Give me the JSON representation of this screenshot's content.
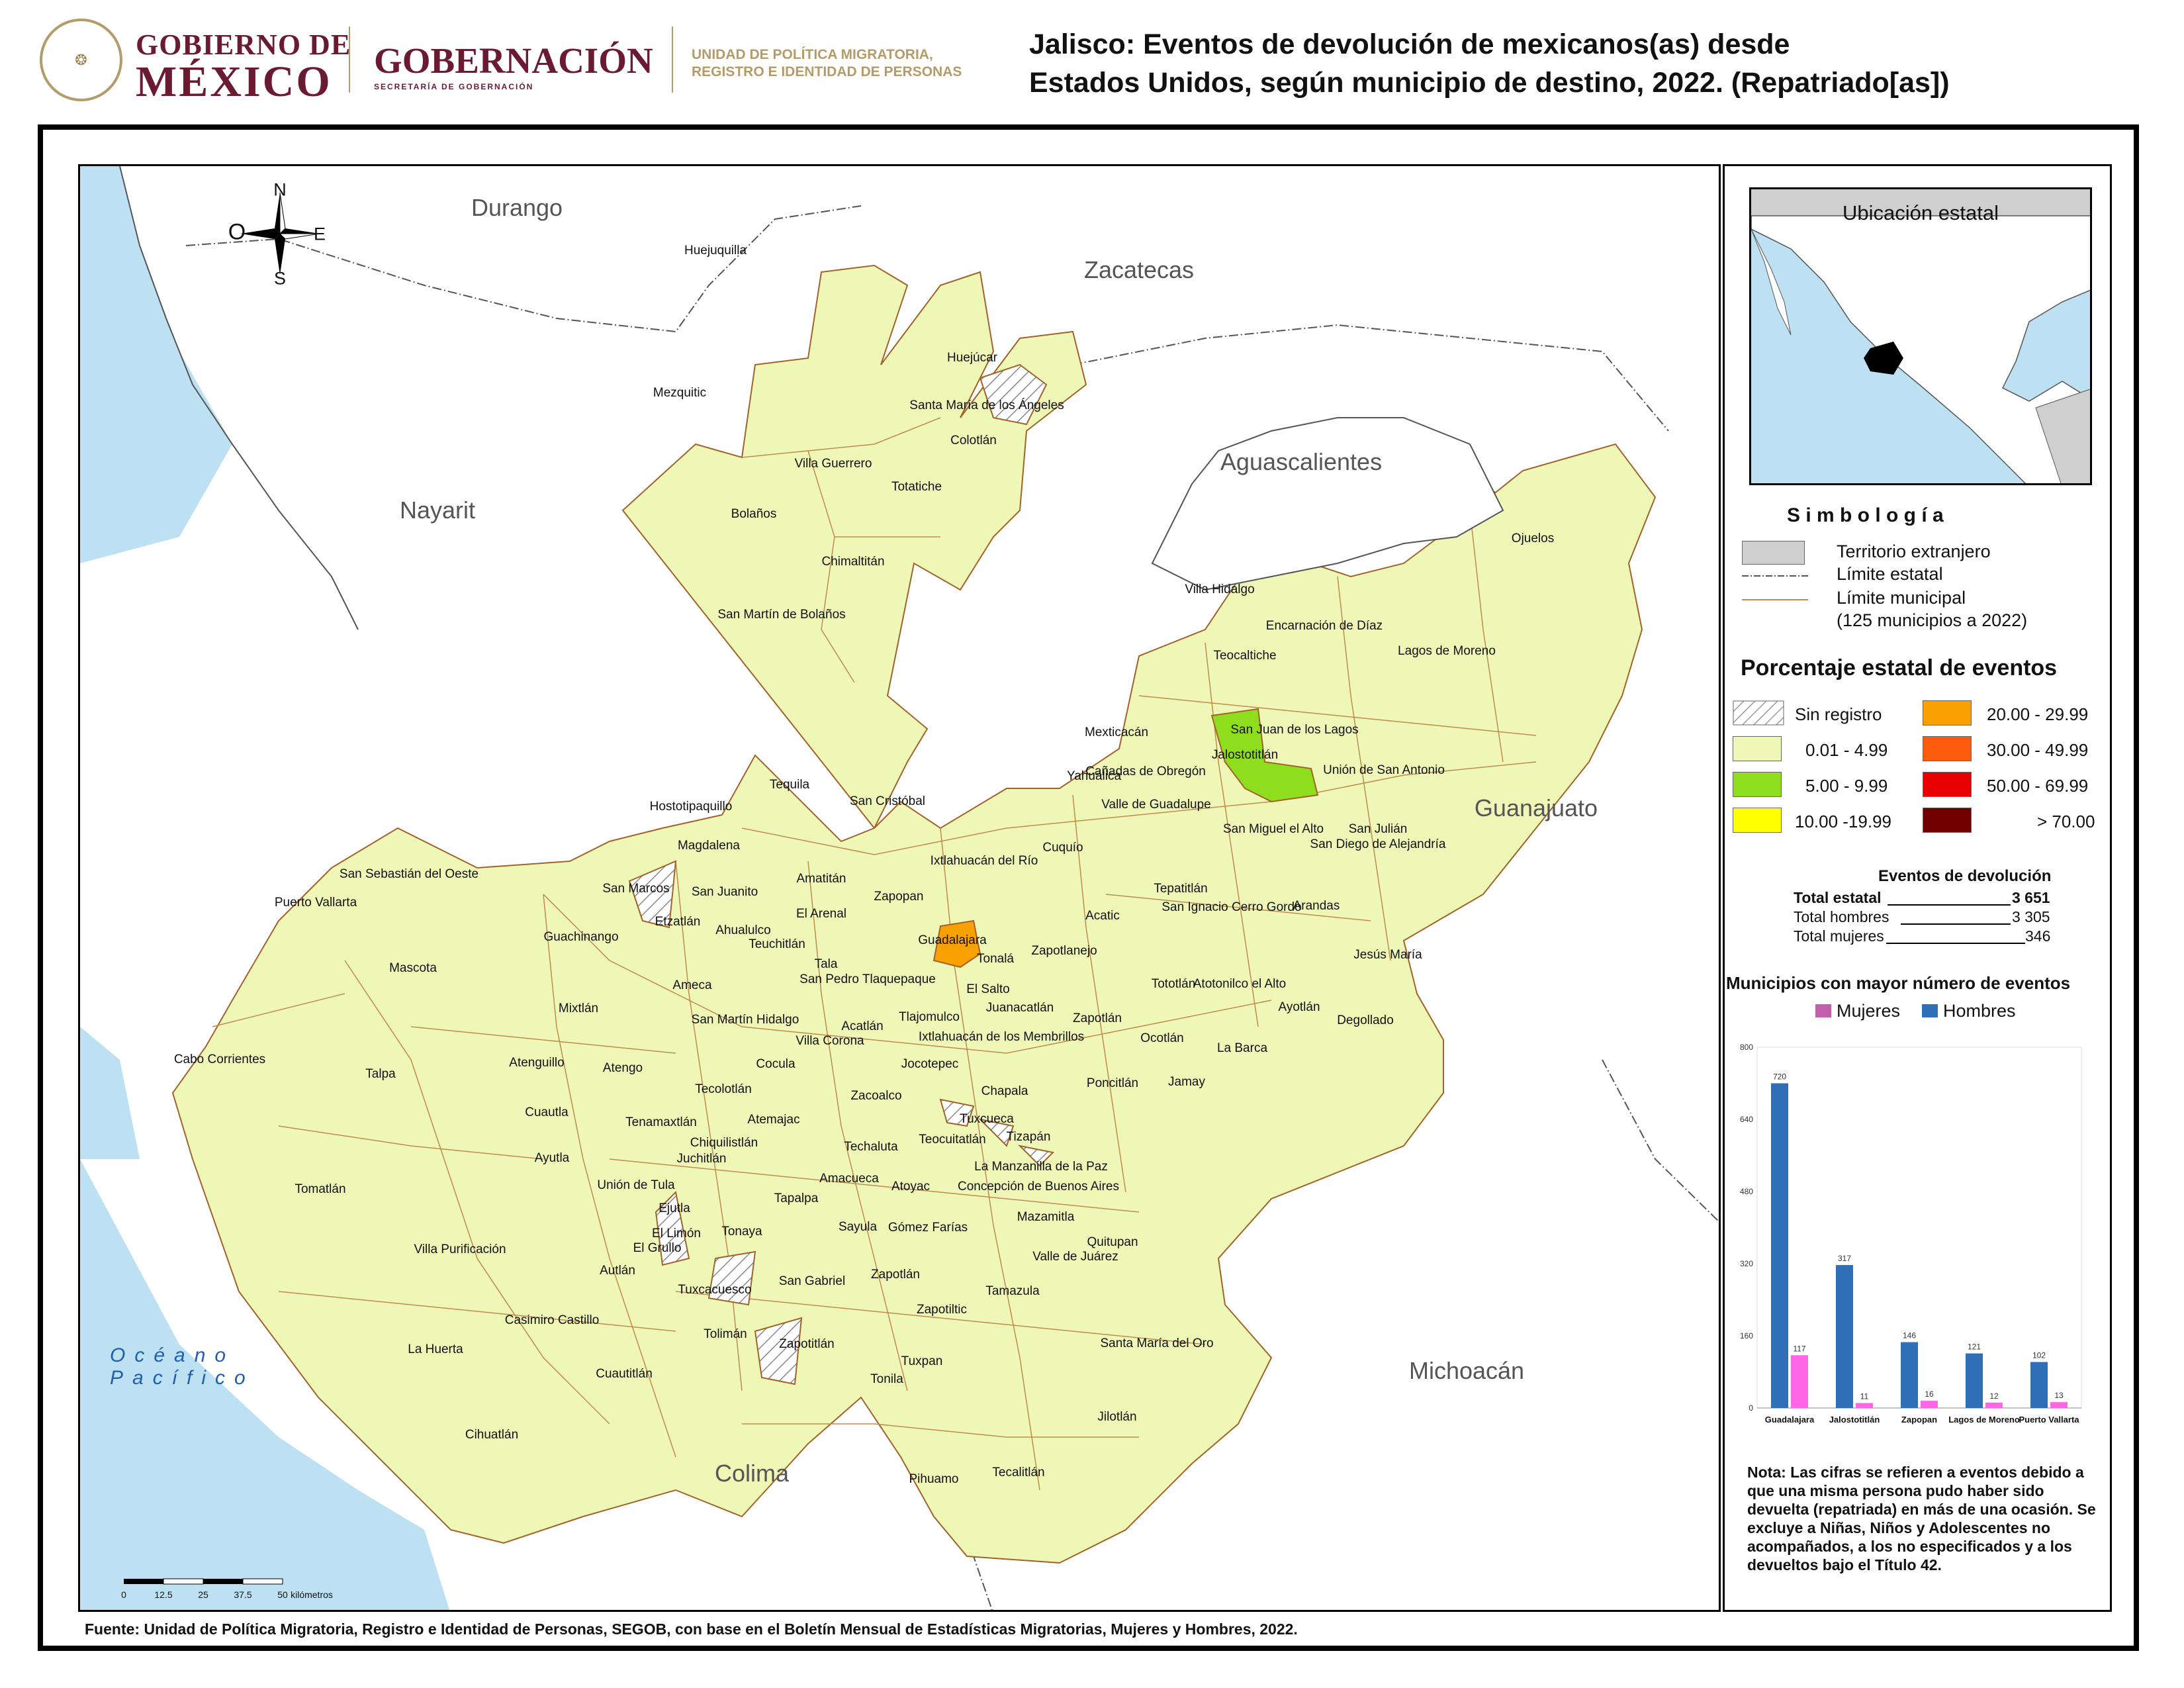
{
  "header": {
    "gobierno_l1": "GOBIERNO DE",
    "gobierno_l2": "MÉXICO",
    "gobernacion": "GOBERNACIÓN",
    "gobernacion_sub": "SECRETARÍA DE GOBERNACIÓN",
    "unidad_l1": "UNIDAD DE POLÍTICA MIGRATORIA,",
    "unidad_l2": "REGISTRO E IDENTIDAD DE PERSONAS",
    "title_l1": "Jalisco: Eventos de devolución de mexicanos(as) desde",
    "title_l2": "Estados Unidos, según municipio de destino, 2022. (Repatriado[as])"
  },
  "compass": {
    "n": "N",
    "s": "S",
    "e": "E",
    "o": "O"
  },
  "states": [
    "Durango",
    "Zacatecas",
    "Nayarit",
    "Aguascalientes",
    "Guanajuato",
    "Michoacán",
    "Colima"
  ],
  "ocean": {
    "l1": "Océano",
    "l2": "Pacífico"
  },
  "municipalities": [
    "Huejuquilla",
    "Mezquitic",
    "Huejúcar",
    "Santa María de los Ángeles",
    "Colotlán",
    "Villa Guerrero",
    "Totatiche",
    "Bolaños",
    "Chimaltitán",
    "San Martín de Bolaños",
    "Villa Hidalgo",
    "Ojuelos",
    "Encarnación de Díaz",
    "Teocaltiche",
    "Lagos de Moreno",
    "Mexticacán",
    "San Juan de los Lagos",
    "Jalostotitlán",
    "Cañadas de Obregón",
    "Yahualica",
    "Unión de San Antonio",
    "Valle de Guadalupe",
    "San Miguel el Alto",
    "San Julián",
    "San Diego de Alejandría",
    "Tequila",
    "San Cristóbal",
    "Hostotipaquillo",
    "Magdalena",
    "San Sebastián del Oeste",
    "San Marcos",
    "San Juanito",
    "Etzatlán",
    "Amatitán",
    "Ixtlahuacán del Río",
    "Cuquío",
    "Zapopan",
    "Puerto Vallarta",
    "El Arenal",
    "Ahualulco",
    "Teuchitlán",
    "Acatic",
    "Tepatitlán",
    "San Ignacio Cerro Gordo",
    "Arandas",
    "Guadalajara",
    "Guachinango",
    "Mascota",
    "Tonalá",
    "Zapotlanejo",
    "Tala",
    "San Pedro Tlaquepaque",
    "El Salto",
    "Jesús María",
    "Ameca",
    "Tototlán",
    "Atotonilco el Alto",
    "Mixtlán",
    "Juanacatlán",
    "Ayotlán",
    "Tlajomulco",
    "Zapotlán",
    "San Martín Hidalgo",
    "Acatlán",
    "Degollado",
    "Villa Corona",
    "Ixtlahuacán de los Membrillos",
    "Ocotlán",
    "Cabo Corrientes",
    "Atenguillo",
    "Atengo",
    "La Barca",
    "Talpa",
    "Cocula",
    "Jocotepec",
    "Poncitlán",
    "Jamay",
    "Tecolotlán",
    "Chapala",
    "Zacoalco",
    "Cuautla",
    "Tenamaxtlán",
    "Atemajac",
    "Tuxcueca",
    "Tizapán",
    "Teocuitatlán",
    "Techaluta",
    "Chiquilistlán",
    "Ayutla",
    "Juchitlán",
    "La Manzanilla de la Paz",
    "Amacueca",
    "Atoyac",
    "Concepción de Buenos Aires",
    "Unión de Tula",
    "Tomatlán",
    "Ejutla",
    "Tapalpa",
    "Mazamitla",
    "Sayula",
    "Gómez Farías",
    "Tonaya",
    "El Limón",
    "El Grullo",
    "Quitupan",
    "Villa Purificación",
    "Valle de Juárez",
    "Autlán",
    "San Gabriel",
    "Zapotlán",
    "Tamazula",
    "Tuxcacuesco",
    "Zapotiltic",
    "Casimiro Castillo",
    "Tolimán",
    "Zapotitlán",
    "Santa María del Oro",
    "La Huerta",
    "Tuxpan",
    "Cuautitlán",
    "Tonila",
    "Jilotlán",
    "Cihuatlán",
    "Pihuamo",
    "Tecalitlán"
  ],
  "scalebar": {
    "ticks": [
      "0",
      "12.5",
      "25",
      "37.5",
      "50"
    ],
    "unit": "kilómetros"
  },
  "source": "Fuente: Unidad de Política Migratoria, Registro e Identidad de Personas, SEGOB, con base en el Boletín Mensual de Estadísticas Migratorias, Mujeres y Hombres, 2022.",
  "legend": {
    "inset_title": "Ubicación estatal",
    "simbologia": "S i m b o l o g í a",
    "territorio": "Territorio extranjero",
    "limite_estatal": "Límite estatal",
    "limite_municipal": "Límite municipal",
    "municipios_count": "(125 municipios a 2022)",
    "porcentaje_title": "Porcentaje estatal de eventos",
    "ranges": [
      {
        "label": "Sin registro",
        "color": "hatch"
      },
      {
        "label": "0.01  -  4.99",
        "color": "#eef7b6"
      },
      {
        "label": "5.00  -  9.99",
        "color": "#8fde1e"
      },
      {
        "label": "10.00 -19.99",
        "color": "#ffff00"
      },
      {
        "label": "20.00 - 29.99",
        "color": "#f9a100"
      },
      {
        "label": "30.00 - 49.99",
        "color": "#ff5b0d"
      },
      {
        "label": "50.00 - 69.99",
        "color": "#e60000"
      },
      {
        "label": "> 70.00",
        "color": "#730000"
      }
    ],
    "eventos_title": "Eventos de devolución",
    "total_estatal_label": "Total estatal",
    "total_estatal": "3 651",
    "total_hombres_label": "Total hombres",
    "total_hombres": "3 305",
    "total_mujeres_label": "Total mujeres",
    "total_mujeres": "346",
    "chart_title": "Municipios con mayor número de eventos",
    "mujeres": "Mujeres",
    "hombres": "Hombres",
    "note": "Nota: Las cifras se refieren a eventos debido a que una misma persona pudo haber sido devuelta (repatriada) en más de una ocasión. Se excluye a Niñas, Niños y Adolescentes no acompañados, a los no especificados y a los devueltos bajo el Título 42."
  },
  "chart_data": {
    "type": "bar",
    "categories": [
      "Guadalajara",
      "Jalostotitlán",
      "Zapopan",
      "Lagos de Moreno",
      "Puerto Vallarta"
    ],
    "series": [
      {
        "name": "Hombres",
        "values": [
          720,
          317,
          146,
          121,
          102
        ],
        "color": "#2e6fb7"
      },
      {
        "name": "Mujeres",
        "values": [
          117,
          11,
          16,
          12,
          13
        ],
        "color": "#ff66e5"
      }
    ],
    "ylim": [
      0,
      800
    ],
    "yticks": [
      0,
      160,
      320,
      480,
      640,
      800
    ],
    "legend": "top",
    "grid": false
  }
}
